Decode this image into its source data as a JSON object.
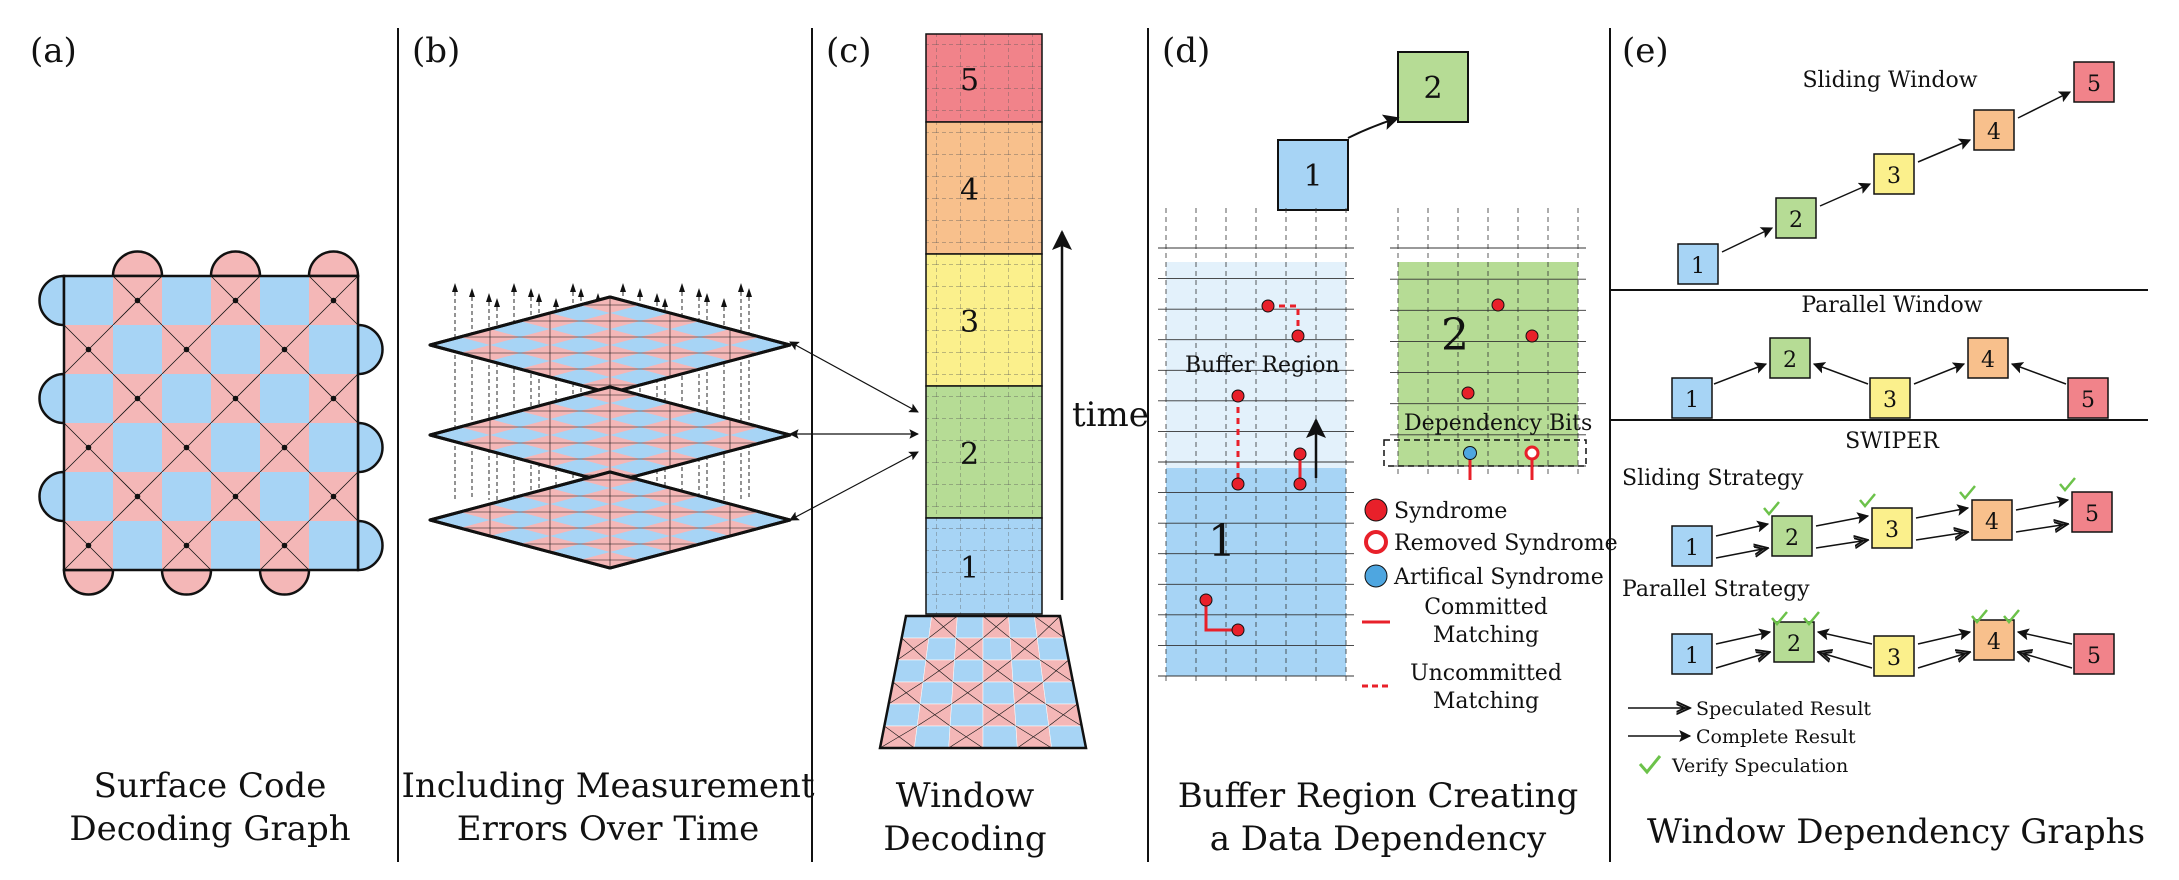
{
  "panels": {
    "a": {
      "label": "(a)",
      "caption": [
        "Surface Code",
        "Decoding Graph"
      ]
    },
    "b": {
      "label": "(b)",
      "caption": [
        "Including Measurement",
        "Errors Over Time"
      ]
    },
    "c": {
      "label": "(c)",
      "caption": [
        "Window",
        "Decoding"
      ],
      "time_label": "time",
      "windows": [
        "1",
        "2",
        "3",
        "4",
        "5"
      ]
    },
    "d": {
      "label": "(d)",
      "caption": [
        "Buffer Region Creating",
        "a Data Dependency"
      ],
      "window_1": "1",
      "window_2": "2",
      "buffer_region": "Buffer Region",
      "dependency_bits": "Dependency Bits",
      "legend": {
        "syndrome": "Syndrome",
        "removed": "Removed Syndrome",
        "artificial": "Artifical Syndrome",
        "committed": [
          "Committed",
          "Matching"
        ],
        "uncommitted": [
          "Uncommitted",
          "Matching"
        ]
      }
    },
    "e": {
      "label": "(e)",
      "caption": "Window Dependency Graphs",
      "sliding_title": "Sliding Window",
      "parallel_title": "Parallel Window",
      "swiper_title": "SWIPER",
      "sliding_strategy": "Sliding Strategy",
      "parallel_strategy": "Parallel Strategy",
      "legend": {
        "speculated": "Speculated Result",
        "complete": "Complete Result",
        "verify": "Verify Speculation"
      },
      "windows": [
        "1",
        "2",
        "3",
        "4",
        "5"
      ]
    }
  },
  "colors": {
    "blue": "#a7d4f5",
    "red_tile": "#f4b7b7",
    "green": "#b6dc95",
    "yellow": "#fbf08c",
    "orange": "#f8c08c",
    "red": "#f1838a",
    "syndrome": "#e8202a",
    "artificial": "#4ea6e0",
    "check": "#6cc24a"
  }
}
